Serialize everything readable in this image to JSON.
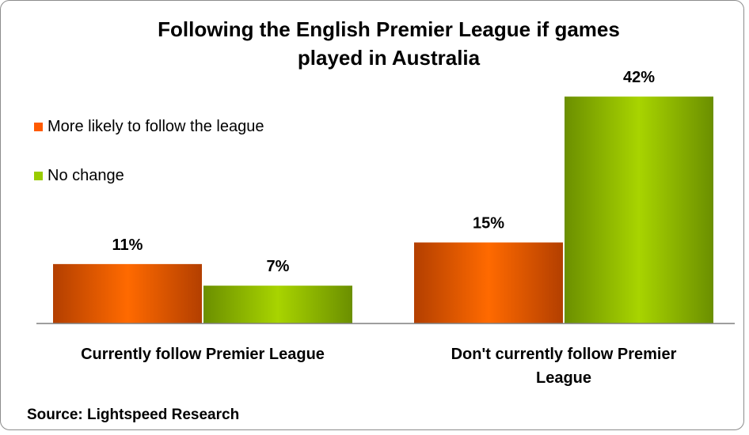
{
  "title_line1": "Following the English Premier League if games",
  "title_line2": "played in Australia",
  "source": "Source: Lightspeed Research",
  "colors": {
    "orange": "#ff5a00",
    "green": "#99cc00"
  },
  "chart_data": {
    "type": "bar",
    "title": "Following the English Premier League if games played in Australia",
    "categories": [
      "Currently follow Premier League",
      "Don't currently follow Premier League"
    ],
    "category_lines": [
      [
        "Currently follow Premier League"
      ],
      [
        "Don't currently follow Premier",
        "League"
      ]
    ],
    "series": [
      {
        "name": "More likely to follow the league",
        "values": [
          11,
          15
        ],
        "labels": [
          "11%",
          "15%"
        ],
        "color": "#ff5a00"
      },
      {
        "name": "No change",
        "values": [
          7,
          42
        ],
        "labels": [
          "7%",
          "42%"
        ],
        "color": "#99cc00"
      }
    ],
    "ylim": [
      0,
      50
    ],
    "unit": "%",
    "grid": false,
    "legend_position": "left"
  }
}
